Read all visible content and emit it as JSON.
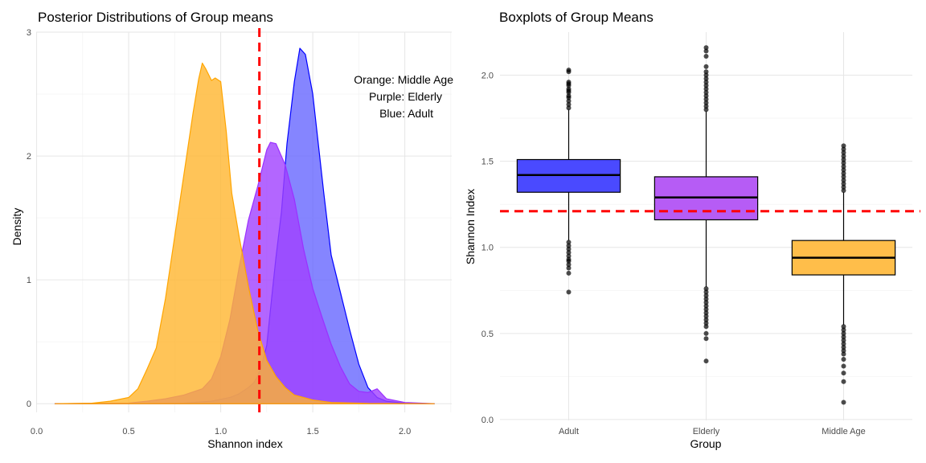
{
  "chart_data": [
    {
      "type": "area",
      "title": "Posterior Distributions of Group means",
      "xlabel": "Shannon index",
      "ylabel": "Density",
      "xlim": [
        0.0,
        2.25
      ],
      "ylim": [
        0,
        3
      ],
      "xticks": [
        "0.0",
        "0.5",
        "1.0",
        "1.5",
        "2.0"
      ],
      "yticks": [
        "0",
        "1",
        "2",
        "3"
      ],
      "grid": true,
      "reference_line": {
        "x": 1.21,
        "style": "dashed",
        "color": "#ff0000"
      },
      "annotations": [
        "Orange: Middle Age",
        "Purple: Elderly",
        "Blue: Adult"
      ],
      "series": [
        {
          "color": "#0000ff",
          "x": [
            0.1,
            0.6,
            0.8,
            0.95,
            1.05,
            1.1,
            1.15,
            1.18,
            1.2,
            1.22,
            1.25,
            1.28,
            1.3,
            1.33,
            1.36,
            1.4,
            1.43,
            1.46,
            1.5,
            1.53,
            1.56,
            1.6,
            1.65,
            1.7,
            1.75,
            1.8,
            1.85,
            1.9,
            2.0,
            2.16
          ],
          "y": [
            0,
            0.001,
            0.005,
            0.02,
            0.05,
            0.08,
            0.13,
            0.17,
            0.22,
            0.3,
            0.47,
            0.9,
            1.18,
            1.55,
            2.1,
            2.6,
            2.87,
            2.82,
            2.5,
            2.1,
            1.7,
            1.2,
            0.9,
            0.6,
            0.32,
            0.13,
            0.05,
            0.02,
            0.004,
            0
          ]
        },
        {
          "color": "#9b30ff",
          "x": [
            0.1,
            0.5,
            0.6,
            0.7,
            0.8,
            0.9,
            0.95,
            1.0,
            1.05,
            1.1,
            1.15,
            1.2,
            1.25,
            1.27,
            1.3,
            1.35,
            1.4,
            1.45,
            1.5,
            1.55,
            1.6,
            1.65,
            1.7,
            1.75,
            1.8,
            1.85,
            1.9,
            2.0,
            2.16
          ],
          "y": [
            0,
            0.005,
            0.02,
            0.04,
            0.07,
            0.12,
            0.2,
            0.38,
            0.68,
            1.1,
            1.48,
            1.75,
            2.05,
            2.11,
            2.1,
            1.93,
            1.65,
            1.25,
            0.93,
            0.7,
            0.48,
            0.3,
            0.16,
            0.1,
            0.09,
            0.12,
            0.04,
            0.01,
            0
          ]
        },
        {
          "color": "#ffa500",
          "x": [
            0.1,
            0.3,
            0.4,
            0.5,
            0.55,
            0.6,
            0.65,
            0.7,
            0.75,
            0.8,
            0.85,
            0.88,
            0.9,
            0.92,
            0.95,
            0.97,
            1.0,
            1.03,
            1.06,
            1.1,
            1.15,
            1.2,
            1.25,
            1.3,
            1.35,
            1.4,
            1.5,
            1.6,
            1.8,
            2.16
          ],
          "y": [
            0,
            0.004,
            0.02,
            0.05,
            0.12,
            0.28,
            0.45,
            0.85,
            1.35,
            1.85,
            2.35,
            2.62,
            2.75,
            2.7,
            2.61,
            2.63,
            2.6,
            2.2,
            1.7,
            1.35,
            0.95,
            0.6,
            0.35,
            0.22,
            0.13,
            0.07,
            0.03,
            0.01,
            0.002,
            0
          ]
        }
      ]
    },
    {
      "type": "box",
      "title": "Boxplots of Group Means",
      "xlabel": "Group",
      "ylabel": "Shannon Index",
      "ylim": [
        0.0,
        2.25
      ],
      "yticks": [
        "0.0",
        "0.5",
        "1.0",
        "1.5",
        "2.0"
      ],
      "categories": [
        "Adult",
        "Elderly",
        "Middle Age"
      ],
      "grid": true,
      "reference_line": {
        "y": 1.21,
        "style": "dashed",
        "color": "#ff0000"
      },
      "boxes": [
        {
          "name": "Adult",
          "color": "#4a4aff",
          "q1": 1.32,
          "median": 1.42,
          "q3": 1.51,
          "whisker_low": 1.04,
          "whisker_high": 1.8,
          "outliers": [
            1.81,
            1.83,
            1.85,
            1.87,
            1.88,
            1.9,
            1.91,
            1.92,
            1.94,
            1.95,
            1.96,
            2.02,
            2.03,
            1.03,
            1.01,
            0.99,
            0.97,
            0.95,
            0.93,
            0.92,
            0.9,
            0.88,
            0.85,
            0.74
          ]
        },
        {
          "name": "Elderly",
          "color": "#b65cf5",
          "q1": 1.16,
          "median": 1.29,
          "q3": 1.41,
          "whisker_low": 0.77,
          "whisker_high": 1.79,
          "outliers": [
            1.8,
            1.82,
            1.84,
            1.86,
            1.88,
            1.9,
            1.92,
            1.94,
            1.96,
            1.98,
            2.0,
            2.02,
            2.05,
            2.11,
            2.14,
            2.16,
            0.76,
            0.74,
            0.72,
            0.7,
            0.68,
            0.66,
            0.64,
            0.62,
            0.6,
            0.58,
            0.56,
            0.54,
            0.5,
            0.47,
            0.34
          ]
        },
        {
          "name": "Middle Age",
          "color": "#ffbe4a",
          "q1": 0.84,
          "median": 0.94,
          "q3": 1.04,
          "whisker_low": 0.55,
          "whisker_high": 1.32,
          "outliers": [
            1.33,
            1.35,
            1.37,
            1.39,
            1.41,
            1.43,
            1.45,
            1.47,
            1.49,
            1.51,
            1.53,
            1.55,
            1.57,
            1.59,
            0.54,
            0.52,
            0.5,
            0.48,
            0.46,
            0.44,
            0.42,
            0.4,
            0.38,
            0.35,
            0.31,
            0.27,
            0.22,
            0.1
          ]
        }
      ]
    }
  ]
}
